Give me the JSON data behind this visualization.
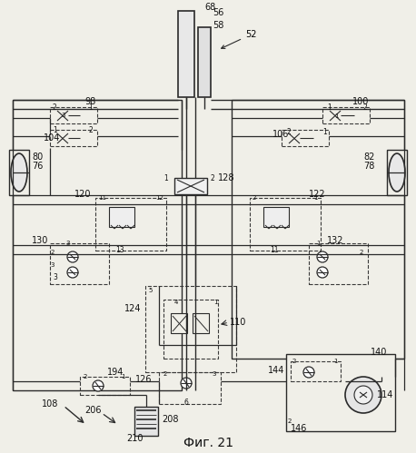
{
  "title": "Фиг. 21",
  "bg_color": "#f0efe8",
  "line_color": "#2a2a2a",
  "dashed_color": "#3a3a3a",
  "figsize": [
    4.58,
    4.99
  ],
  "dpi": 100
}
